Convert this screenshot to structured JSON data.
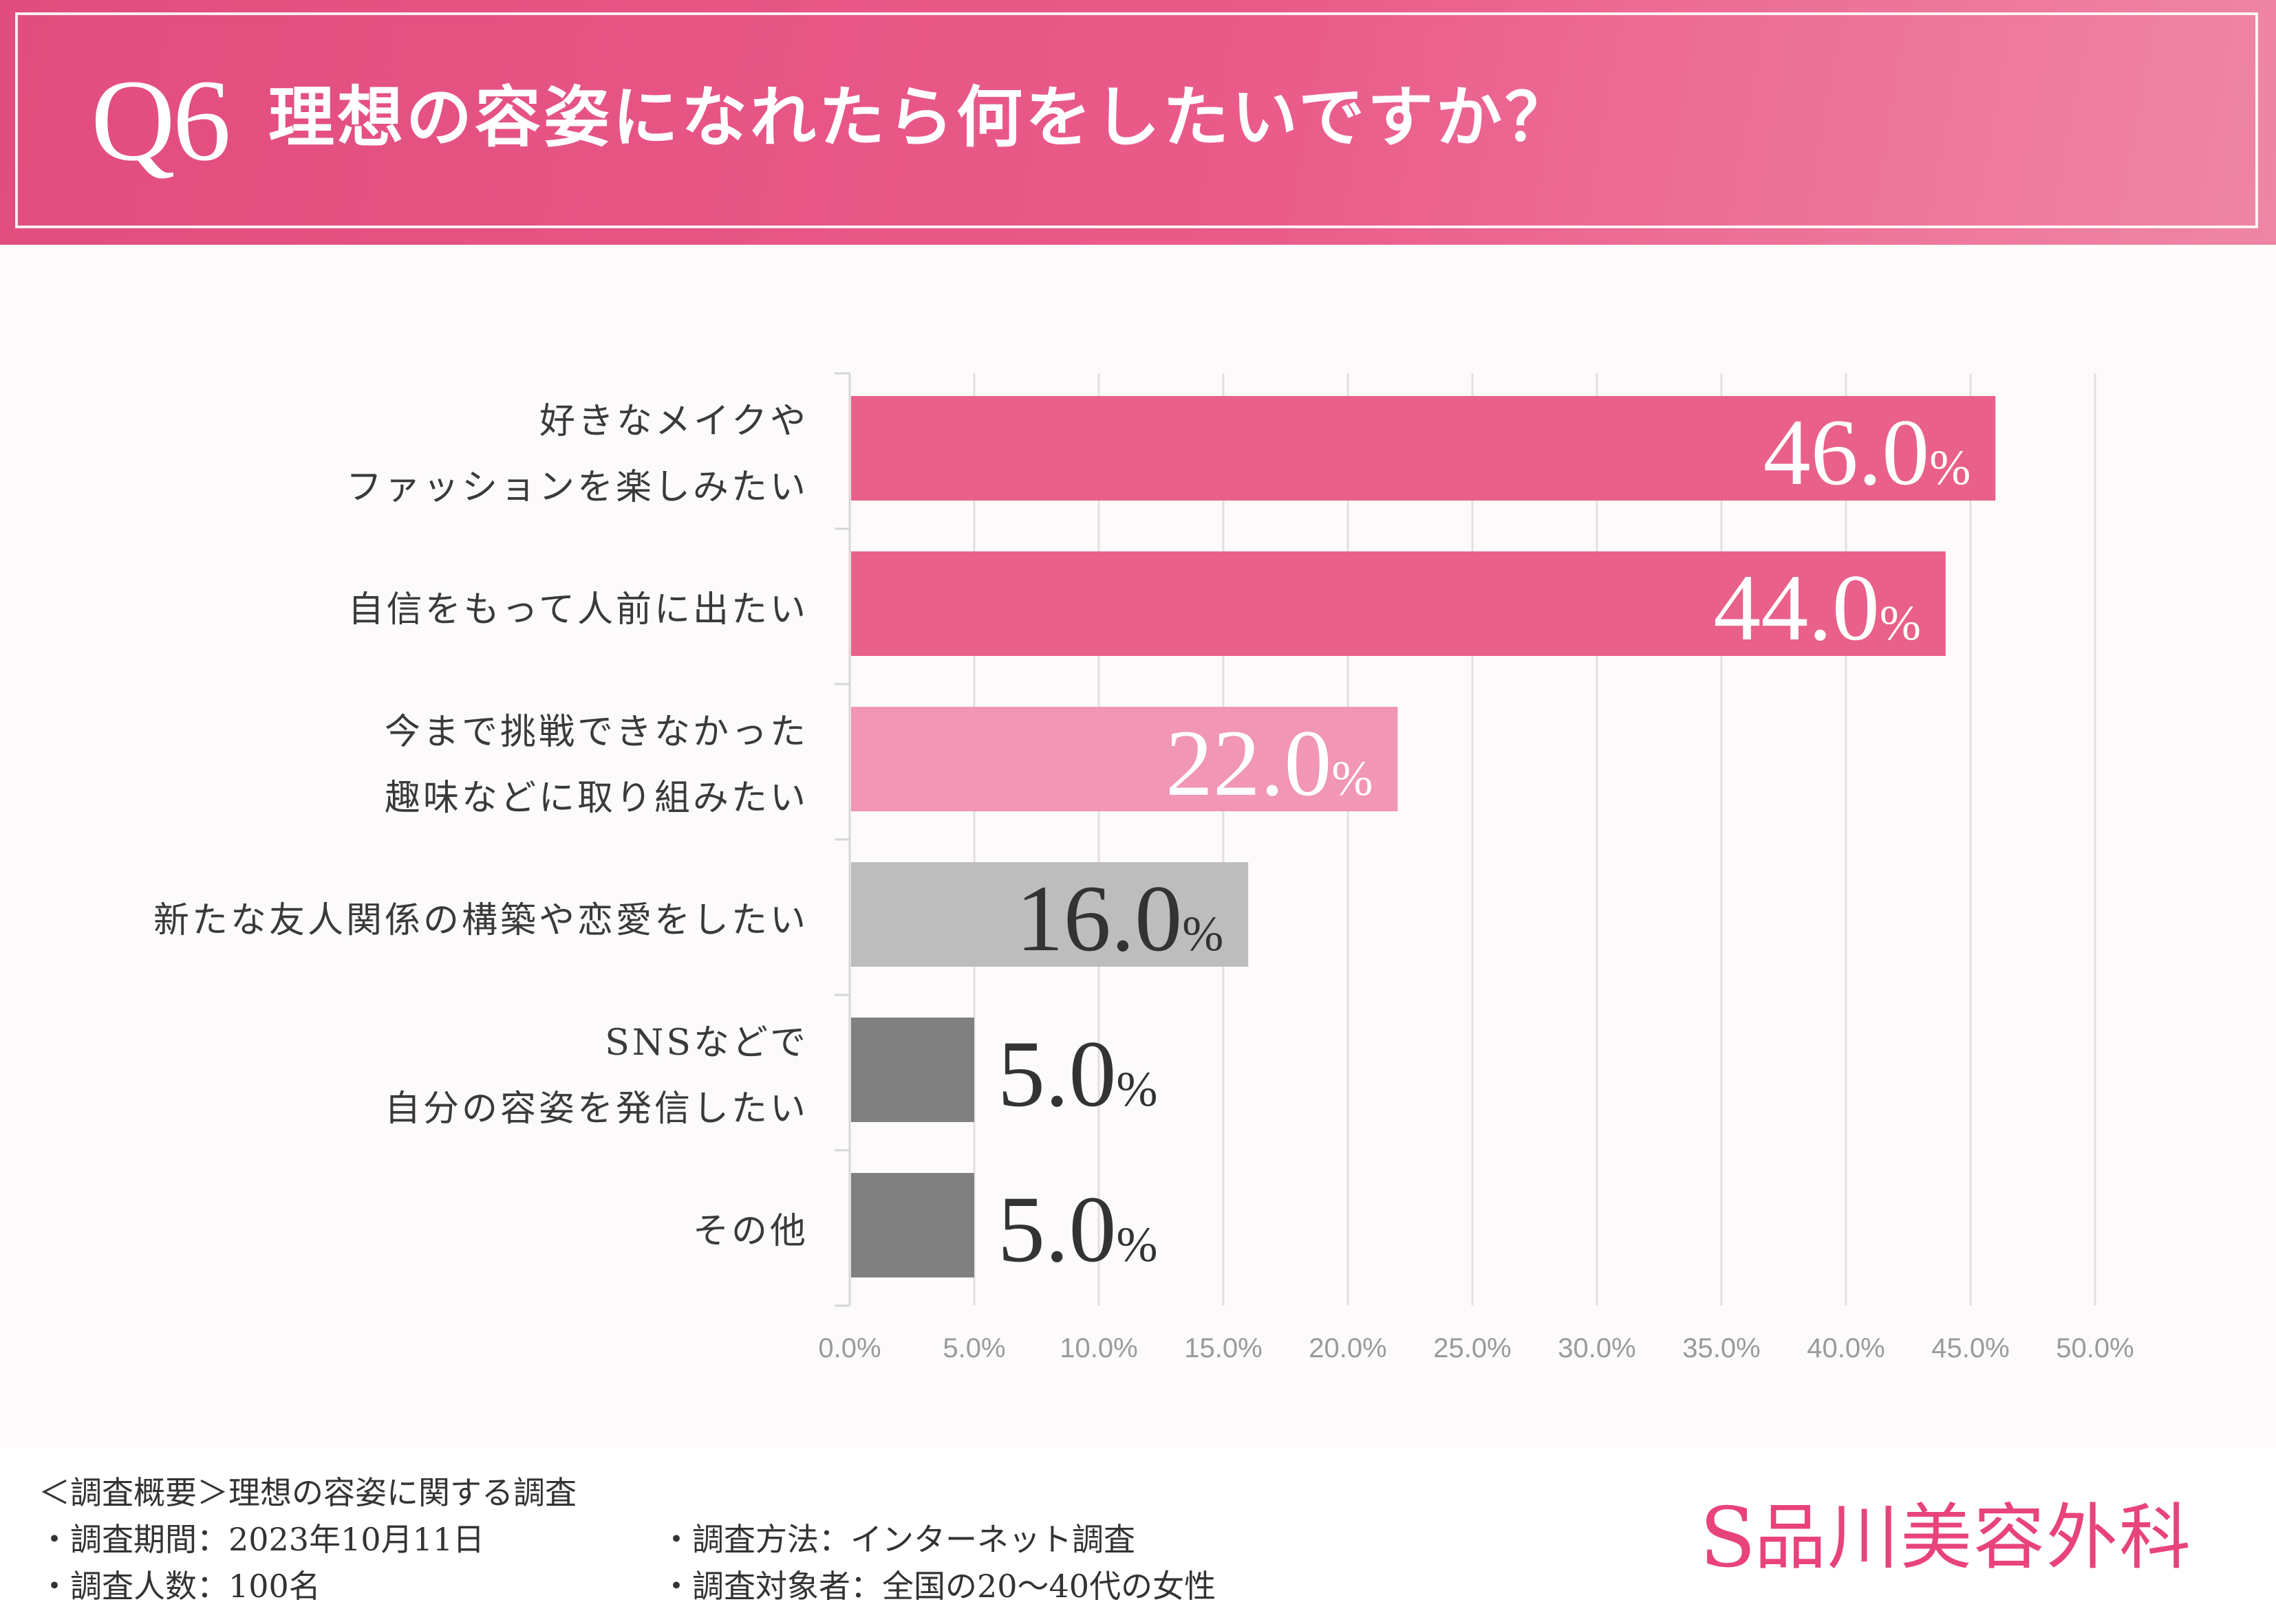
{
  "header": {
    "question_number": "Q6",
    "title": "理想の容姿になれたら何をしたいですか？"
  },
  "chart_data": {
    "type": "bar",
    "orientation": "horizontal",
    "title": "理想の容姿になれたら何をしたいですか？",
    "categories": [
      [
        "好きなメイクや",
        "ファッションを楽しみたい"
      ],
      [
        "自信をもって人前に出たい"
      ],
      [
        "今まで挑戦できなかった",
        "趣味などに取り組みたい"
      ],
      [
        "新たな友人関係の構築や恋愛をしたい"
      ],
      [
        "SNSなどで",
        "自分の容姿を発信したい"
      ],
      [
        "その他"
      ]
    ],
    "values": [
      46.0,
      44.0,
      22.0,
      16.0,
      5.0,
      5.0
    ],
    "value_labels": [
      "46.0",
      "44.0",
      "22.0",
      "16.0",
      "5.0",
      "5.0"
    ],
    "value_suffix": "%",
    "bar_colors": [
      "#e9608a",
      "#e9608a",
      "#f196b4",
      "#bdbdbd",
      "#808080",
      "#808080"
    ],
    "label_colors": [
      "#ffffff",
      "#ffffff",
      "#ffffff",
      "#333333",
      "#333333",
      "#333333"
    ],
    "label_inside": [
      true,
      true,
      true,
      true,
      false,
      false
    ],
    "xlim": [
      0,
      50
    ],
    "xticks": [
      0,
      5,
      10,
      15,
      20,
      25,
      30,
      35,
      40,
      45,
      50
    ],
    "xtick_labels": [
      "0.0%",
      "5.0%",
      "10.0%",
      "15.0%",
      "20.0%",
      "25.0%",
      "30.0%",
      "35.0%",
      "40.0%",
      "45.0%",
      "50.0%"
    ],
    "grid": true,
    "xlabel": "",
    "ylabel": ""
  },
  "footer": {
    "survey_title": "＜調査概要＞理想の容姿に関する調査",
    "period": "・調査期間：2023年10月11日",
    "respondents": "・調査人数：100名",
    "method": "・調査方法：インターネット調査",
    "target": "・調査対象者：全国の20〜40代の女性"
  },
  "logo": {
    "mark": "S",
    "text": "品川美容外科"
  }
}
